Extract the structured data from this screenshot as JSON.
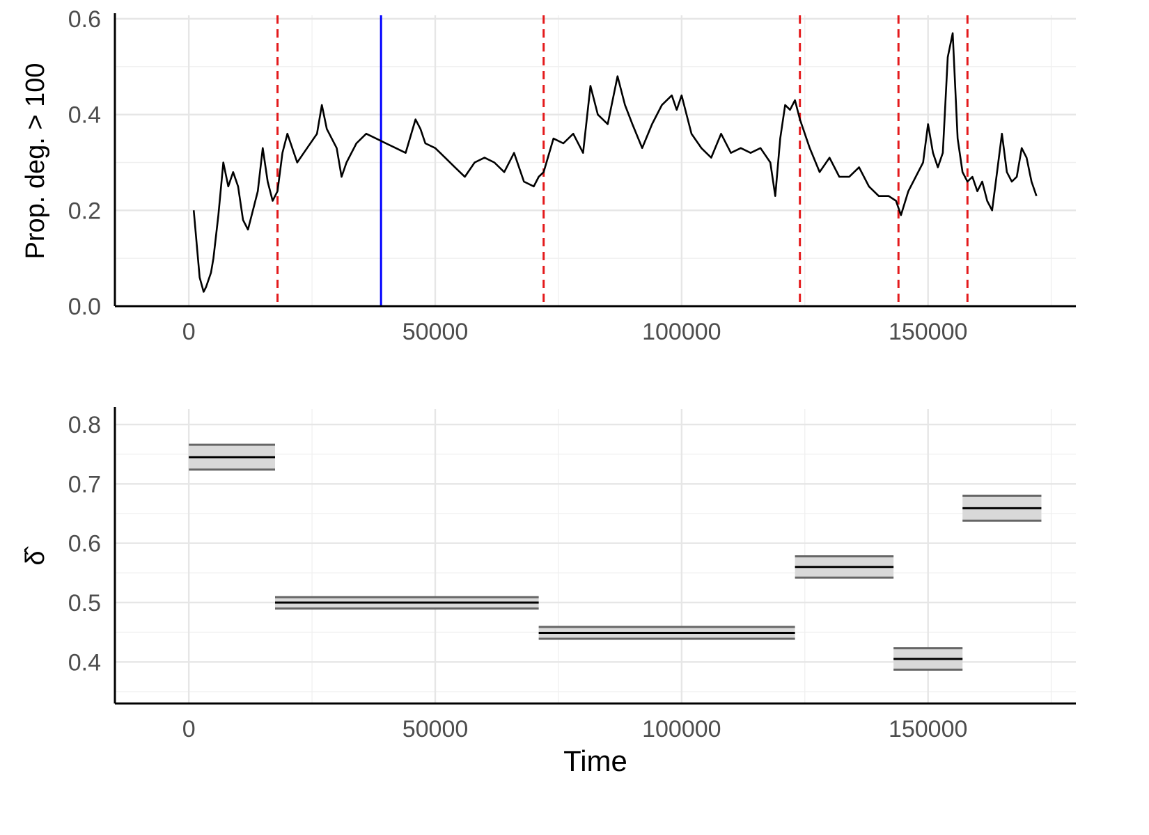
{
  "chart_data": [
    {
      "type": "line",
      "ylabel": "Prop. deg. > 100",
      "xlabel": "",
      "xlim": [
        -15000,
        180000
      ],
      "ylim": [
        0,
        0.6
      ],
      "xticks": [
        0,
        50000,
        100000,
        150000
      ],
      "xtick_labels": [
        "0",
        "50000",
        "100000",
        "150000"
      ],
      "yticks": [
        0,
        0.2,
        0.4,
        0.6
      ],
      "ytick_labels": [
        "0.0",
        "0.2",
        "0.4",
        "0.6"
      ],
      "grid": true,
      "line_color": "#000000",
      "series": [
        {
          "x": [
            1000,
            2200,
            3000,
            3500,
            4500,
            5000,
            6000,
            7000,
            8000,
            9000,
            10000,
            11000,
            12000,
            13000,
            14000,
            15000,
            16000,
            17000,
            18000,
            19000,
            20000,
            22000,
            24000,
            26000,
            27000,
            28000,
            30000,
            31000,
            32000,
            34000,
            36000,
            38000,
            40000,
            42000,
            44000,
            46000,
            47000,
            48000,
            50000,
            52000,
            54000,
            56000,
            58000,
            60000,
            62000,
            64000,
            66000,
            68000,
            70000,
            71000,
            72000,
            74000,
            76000,
            78000,
            80000,
            81500,
            83000,
            85000,
            87000,
            88500,
            90000,
            92000,
            94000,
            96000,
            98000,
            99000,
            100000,
            102000,
            104000,
            106000,
            108000,
            110000,
            112000,
            114000,
            116000,
            118000,
            119000,
            120000,
            121000,
            122000,
            123000,
            124000,
            126000,
            128000,
            130000,
            132000,
            134000,
            136000,
            138000,
            140000,
            142000,
            143500,
            144500,
            146000,
            148000,
            149000,
            150000,
            151000,
            152000,
            153000,
            154000,
            155000,
            156000,
            157000,
            158000,
            159000,
            160000,
            161000,
            162000,
            163000,
            164000,
            165000,
            166000,
            167000,
            168000,
            169000,
            170000,
            171000,
            172000
          ],
          "y": [
            0.2,
            0.06,
            0.03,
            0.04,
            0.07,
            0.1,
            0.19,
            0.3,
            0.25,
            0.28,
            0.25,
            0.18,
            0.16,
            0.2,
            0.24,
            0.33,
            0.26,
            0.22,
            0.24,
            0.32,
            0.36,
            0.3,
            0.33,
            0.36,
            0.42,
            0.37,
            0.33,
            0.27,
            0.3,
            0.34,
            0.36,
            0.35,
            0.34,
            0.33,
            0.32,
            0.39,
            0.37,
            0.34,
            0.33,
            0.31,
            0.29,
            0.27,
            0.3,
            0.31,
            0.3,
            0.28,
            0.32,
            0.26,
            0.25,
            0.27,
            0.28,
            0.35,
            0.34,
            0.36,
            0.32,
            0.46,
            0.4,
            0.38,
            0.48,
            0.42,
            0.38,
            0.33,
            0.38,
            0.42,
            0.44,
            0.41,
            0.44,
            0.36,
            0.33,
            0.31,
            0.36,
            0.32,
            0.33,
            0.32,
            0.33,
            0.3,
            0.23,
            0.35,
            0.42,
            0.41,
            0.43,
            0.39,
            0.33,
            0.28,
            0.31,
            0.27,
            0.27,
            0.29,
            0.25,
            0.23,
            0.23,
            0.22,
            0.19,
            0.24,
            0.28,
            0.3,
            0.38,
            0.32,
            0.29,
            0.32,
            0.52,
            0.57,
            0.35,
            0.28,
            0.26,
            0.27,
            0.24,
            0.26,
            0.22,
            0.2,
            0.28,
            0.36,
            0.28,
            0.26,
            0.27,
            0.33,
            0.31,
            0.26,
            0.23
          ]
        }
      ],
      "changepoints": [
        18000,
        72000,
        124000,
        144000,
        158000
      ],
      "changepoint_color": "#e41a1c",
      "highlight_x": 39000,
      "highlight_color": "#0000ff"
    },
    {
      "type": "segments",
      "ylabel": "δ̂",
      "xlabel": "Time",
      "xlim": [
        -15000,
        180000
      ],
      "ylim": [
        0.33,
        0.82
      ],
      "xticks": [
        0,
        50000,
        100000,
        150000
      ],
      "xtick_labels": [
        "0",
        "50000",
        "100000",
        "150000"
      ],
      "yticks": [
        0.4,
        0.5,
        0.6,
        0.7,
        0.8
      ],
      "ytick_labels": [
        "0.4",
        "0.5",
        "0.6",
        "0.7",
        "0.8"
      ],
      "grid": true,
      "band_color": "#d9d9d9",
      "bound_color": "#666666",
      "estimate_color": "#000000",
      "segments": [
        {
          "x_start": 0,
          "x_end": 17500,
          "estimate": 0.745,
          "lower": 0.724,
          "upper": 0.766
        },
        {
          "x_start": 17500,
          "x_end": 71000,
          "estimate": 0.5,
          "lower": 0.49,
          "upper": 0.509
        },
        {
          "x_start": 71000,
          "x_end": 123000,
          "estimate": 0.449,
          "lower": 0.439,
          "upper": 0.459
        },
        {
          "x_start": 123000,
          "x_end": 143000,
          "estimate": 0.56,
          "lower": 0.542,
          "upper": 0.578
        },
        {
          "x_start": 143000,
          "x_end": 157000,
          "estimate": 0.405,
          "lower": 0.387,
          "upper": 0.423
        },
        {
          "x_start": 157000,
          "x_end": 173000,
          "estimate": 0.659,
          "lower": 0.638,
          "upper": 0.68
        }
      ]
    }
  ]
}
